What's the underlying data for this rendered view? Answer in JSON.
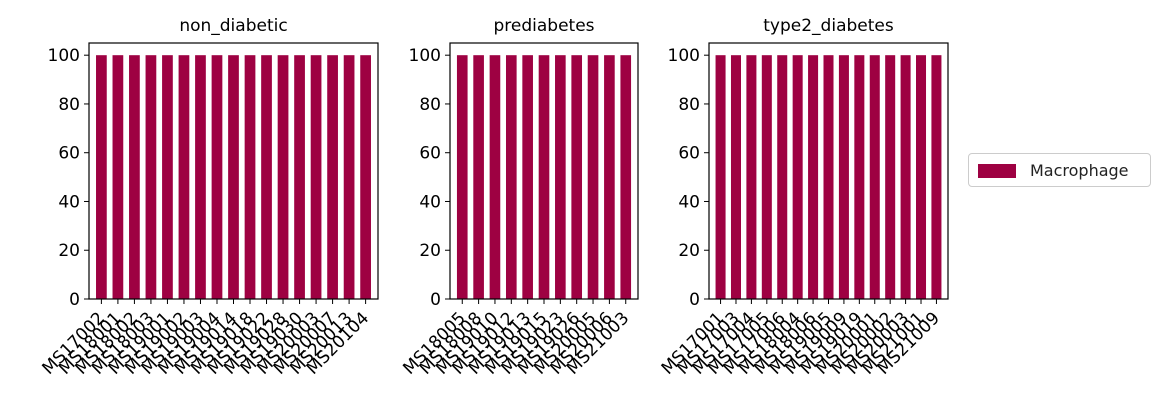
{
  "chart_data": [
    {
      "type": "bar",
      "title": "non_diabetic",
      "categories": [
        "MS17002",
        "MS18001",
        "MS18002",
        "MS18003",
        "MS19001",
        "MS19002",
        "MS19003",
        "MS19004",
        "MS19014",
        "MS19018",
        "MS19022",
        "MS19028",
        "MS19030",
        "MS20003",
        "MS20007",
        "MS20013",
        "MS20104"
      ],
      "series": [
        {
          "name": "Macrophage",
          "values": [
            100,
            100,
            100,
            100,
            100,
            100,
            100,
            100,
            100,
            100,
            100,
            100,
            100,
            100,
            100,
            100,
            100
          ]
        }
      ],
      "ylim": [
        0,
        105
      ],
      "yticks": [
        0,
        20,
        40,
        60,
        80,
        100
      ]
    },
    {
      "type": "bar",
      "title": "prediabetes",
      "categories": [
        "MS18005",
        "MS18008",
        "MS19010",
        "MS19012",
        "MS19013",
        "MS19015",
        "MS19023",
        "MS19026",
        "MS20005",
        "MS20006",
        "MS21003"
      ],
      "series": [
        {
          "name": "Macrophage",
          "values": [
            100,
            100,
            100,
            100,
            100,
            100,
            100,
            100,
            100,
            100,
            100
          ]
        }
      ],
      "ylim": [
        0,
        105
      ],
      "yticks": [
        0,
        20,
        40,
        60,
        80,
        100
      ]
    },
    {
      "type": "bar",
      "title": "type2_diabetes",
      "categories": [
        "MS17001",
        "MS17003",
        "MS17004",
        "MS17005",
        "MS17006",
        "MS18004",
        "MS18006",
        "MS19005",
        "MS19009",
        "MS19019",
        "MS20001",
        "MS20002",
        "MS20003",
        "MS21001",
        "MS21009"
      ],
      "series": [
        {
          "name": "Macrophage",
          "values": [
            100,
            100,
            100,
            100,
            100,
            100,
            100,
            100,
            100,
            100,
            100,
            100,
            100,
            100,
            100
          ]
        }
      ],
      "ylim": [
        0,
        105
      ],
      "yticks": [
        0,
        20,
        40,
        60,
        80,
        100
      ]
    }
  ],
  "legend": {
    "label": "Macrophage",
    "placement": "right",
    "color": "#9e0142"
  },
  "colors": {
    "bar": "#9e0142"
  }
}
